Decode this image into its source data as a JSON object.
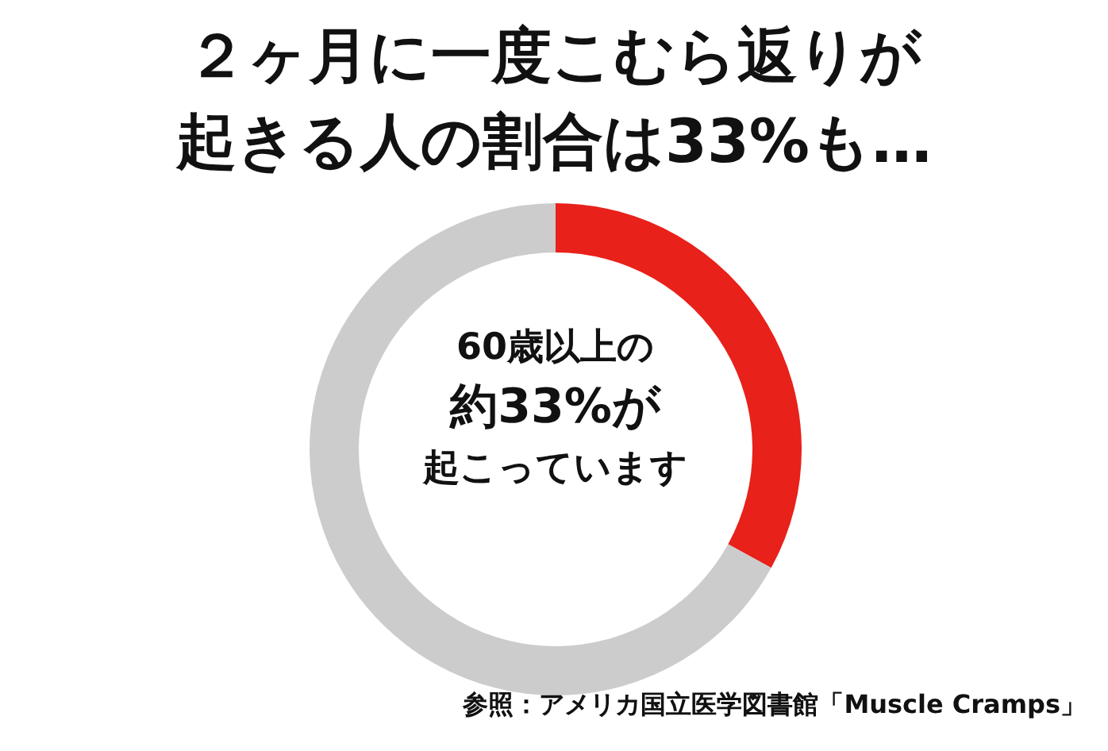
{
  "chart_data": {
    "type": "donut",
    "title": "２ヶ月に一度こむら返りが起きる人の割合は33%も…",
    "categories": [
      null,
      null
    ],
    "values": [
      33,
      67
    ],
    "colors": [
      "#e8211a",
      "#cccccc"
    ],
    "annotations": [
      "60歳以上の",
      "約33%が",
      "起こっています",
      "参照：アメリカ国立医学図書館「Muscle Cramps」"
    ],
    "legend": false
  }
}
